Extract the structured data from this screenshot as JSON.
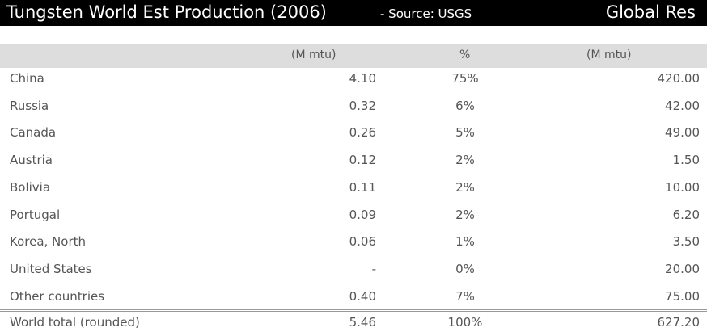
{
  "header": {
    "title": "Tungsten World Est Production (2006)",
    "source": "- Source: USGS",
    "reserves": "Global Res"
  },
  "table": {
    "units": [
      "(M mtu)",
      "%",
      "(M mtu)"
    ],
    "rows": [
      [
        "China",
        "4.10",
        "75%",
        "420.00"
      ],
      [
        "Russia",
        "0.32",
        "6%",
        "42.00"
      ],
      [
        "Canada",
        "0.26",
        "5%",
        "49.00"
      ],
      [
        "Austria",
        "0.12",
        "2%",
        "1.50"
      ],
      [
        "Bolivia",
        "0.11",
        "2%",
        "10.00"
      ],
      [
        "Portugal",
        "0.09",
        "2%",
        "6.20"
      ],
      [
        "Korea, North",
        "0.06",
        "1%",
        "3.50"
      ],
      [
        "United States",
        "-",
        "0%",
        "20.00"
      ],
      [
        "Other countries",
        "0.40",
        "7%",
        "75.00"
      ]
    ],
    "total": [
      "World total (rounded)",
      "5.46",
      "100%",
      "627.20"
    ]
  }
}
